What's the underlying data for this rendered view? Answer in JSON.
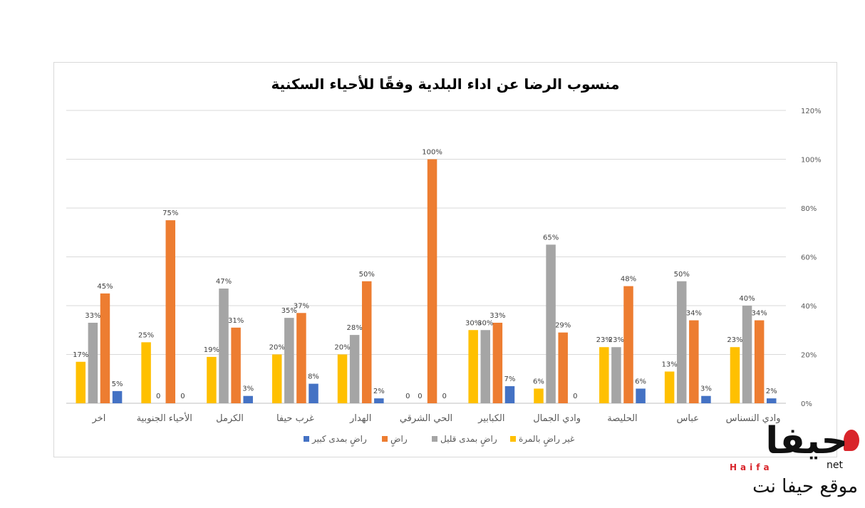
{
  "chart_data": {
    "type": "bar",
    "title": "منسوب الرضا عن اداء البلدية وفقًا للأحياء السكنية",
    "categories": [
      "اخر",
      "الأحياء الجنوبية",
      "الكرمل",
      "غرب حيفا",
      "الهدار",
      "الحي الشرقي",
      "الكبابير",
      "وادي الجمال",
      "الحليصة",
      "عباس",
      "وادي النسناس"
    ],
    "series": [
      {
        "name": "غير راضٍ بالمرة",
        "color": "#ffc000",
        "values": [
          17,
          25,
          19,
          20,
          20,
          0,
          30,
          6,
          23,
          13,
          23
        ],
        "labels": [
          "17%",
          "25%",
          "19%",
          "20%",
          "20%",
          "0",
          "30%",
          "6%",
          "23%",
          "13%",
          "23%"
        ]
      },
      {
        "name": "راضٍ بمدى قليل",
        "color": "#a5a5a5",
        "values": [
          33,
          0,
          47,
          35,
          28,
          0,
          30,
          65,
          23,
          50,
          40
        ],
        "labels": [
          "33%",
          "0",
          "47%",
          "35%",
          "28%",
          "0",
          "30%",
          "65%",
          "23%",
          "50%",
          "40%"
        ]
      },
      {
        "name": "راضٍ",
        "color": "#ed7d31",
        "values": [
          45,
          75,
          31,
          37,
          50,
          100,
          33,
          29,
          48,
          34,
          34
        ],
        "labels": [
          "45%",
          "75%",
          "31%",
          "37%",
          "50%",
          "100%",
          "33%",
          "29%",
          "48%",
          "34%",
          "34%"
        ]
      },
      {
        "name": "راضٍ بمدى كبير",
        "color": "#4472c4",
        "values": [
          5,
          0,
          3,
          8,
          2,
          0,
          7,
          0,
          6,
          3,
          2
        ],
        "labels": [
          "5%",
          "0",
          "3%",
          "8%",
          "2%",
          "0",
          "7%",
          "0",
          "6%",
          "3%",
          "2%"
        ]
      }
    ],
    "y_axis": {
      "position": "right",
      "min": 0,
      "max": 120,
      "ticks": [
        "0%",
        "20%",
        "40%",
        "60%",
        "80%",
        "100%",
        "120%"
      ]
    },
    "grid": true,
    "legend": {
      "position": "bottom",
      "order": [
        "راضٍ بمدى كبير",
        "راضٍ",
        "راضٍ بمدى قليل",
        "غير راضٍ بالمرة"
      ]
    }
  },
  "logo": {
    "brand": "حيفا",
    "latin": "Haifa",
    "net": "net",
    "tagline": "موقع حيفا نت"
  }
}
